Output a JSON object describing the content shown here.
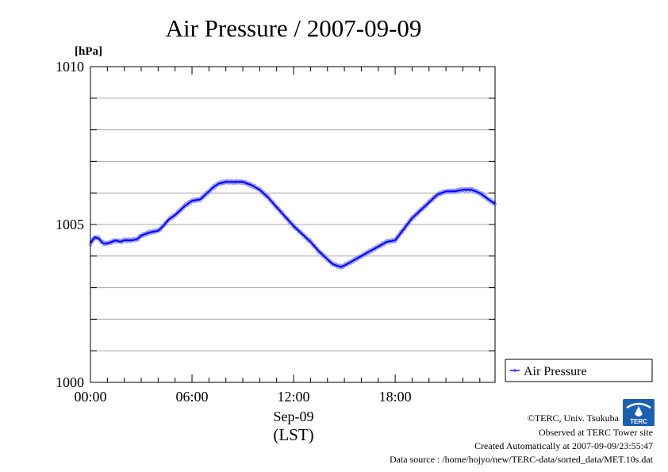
{
  "chart_data": {
    "type": "line",
    "title": "Air Pressure / 2007-09-09",
    "ylabel_unit": "[hPa]",
    "ylim": [
      1000,
      1010
    ],
    "y_ticks": [
      "1000",
      "1005",
      "1010"
    ],
    "y_minor_step": 1,
    "xlim": [
      0,
      23.9
    ],
    "x_ticks": [
      {
        "value": 0,
        "label": "00:00"
      },
      {
        "value": 6,
        "label": "06:00"
      },
      {
        "value": 12,
        "label": "12:00"
      },
      {
        "value": 18,
        "label": "18:00"
      }
    ],
    "xlabel_date": "Sep-09",
    "xlabel_zone": "(LST)",
    "grid": true,
    "legend_position": "right",
    "series": [
      {
        "name": "Air Pressure",
        "color": "#0000ff",
        "marker_color": "#8080ff",
        "points": [
          [
            0.0,
            1004.4
          ],
          [
            0.25,
            1004.6
          ],
          [
            0.5,
            1004.55
          ],
          [
            0.75,
            1004.4
          ],
          [
            1.0,
            1004.4
          ],
          [
            1.25,
            1004.45
          ],
          [
            1.5,
            1004.5
          ],
          [
            1.75,
            1004.45
          ],
          [
            2.0,
            1004.5
          ],
          [
            2.5,
            1004.5
          ],
          [
            2.8,
            1004.55
          ],
          [
            3.0,
            1004.65
          ],
          [
            3.5,
            1004.75
          ],
          [
            4.0,
            1004.8
          ],
          [
            4.3,
            1004.95
          ],
          [
            4.6,
            1005.15
          ],
          [
            5.0,
            1005.3
          ],
          [
            5.3,
            1005.45
          ],
          [
            5.6,
            1005.6
          ],
          [
            6.0,
            1005.75
          ],
          [
            6.5,
            1005.8
          ],
          [
            7.0,
            1006.05
          ],
          [
            7.3,
            1006.2
          ],
          [
            7.6,
            1006.3
          ],
          [
            8.0,
            1006.35
          ],
          [
            8.5,
            1006.35
          ],
          [
            9.0,
            1006.35
          ],
          [
            9.5,
            1006.25
          ],
          [
            10.0,
            1006.1
          ],
          [
            10.5,
            1005.85
          ],
          [
            11.0,
            1005.55
          ],
          [
            11.5,
            1005.25
          ],
          [
            12.0,
            1004.95
          ],
          [
            12.5,
            1004.7
          ],
          [
            13.0,
            1004.45
          ],
          [
            13.5,
            1004.15
          ],
          [
            14.0,
            1003.9
          ],
          [
            14.3,
            1003.75
          ],
          [
            14.8,
            1003.65
          ],
          [
            15.0,
            1003.7
          ],
          [
            15.5,
            1003.85
          ],
          [
            16.0,
            1004.0
          ],
          [
            16.5,
            1004.15
          ],
          [
            17.0,
            1004.3
          ],
          [
            17.5,
            1004.45
          ],
          [
            18.0,
            1004.5
          ],
          [
            18.5,
            1004.85
          ],
          [
            19.0,
            1005.2
          ],
          [
            19.5,
            1005.45
          ],
          [
            20.0,
            1005.7
          ],
          [
            20.5,
            1005.95
          ],
          [
            21.0,
            1006.05
          ],
          [
            21.5,
            1006.05
          ],
          [
            22.0,
            1006.1
          ],
          [
            22.5,
            1006.1
          ],
          [
            23.0,
            1006.0
          ],
          [
            23.5,
            1005.8
          ],
          [
            23.9,
            1005.65
          ]
        ]
      }
    ]
  },
  "credits": {
    "copyright": "©TERC, Univ. Tsukuba",
    "observed": "Observed at TERC Tower site",
    "created": "Created Automatically at 2007-09-09/23:55:47",
    "source": "Data source : /home/hojyo/new/TERC-data/sorted_data/MET.10s.dat",
    "logo_text": "TERC"
  }
}
